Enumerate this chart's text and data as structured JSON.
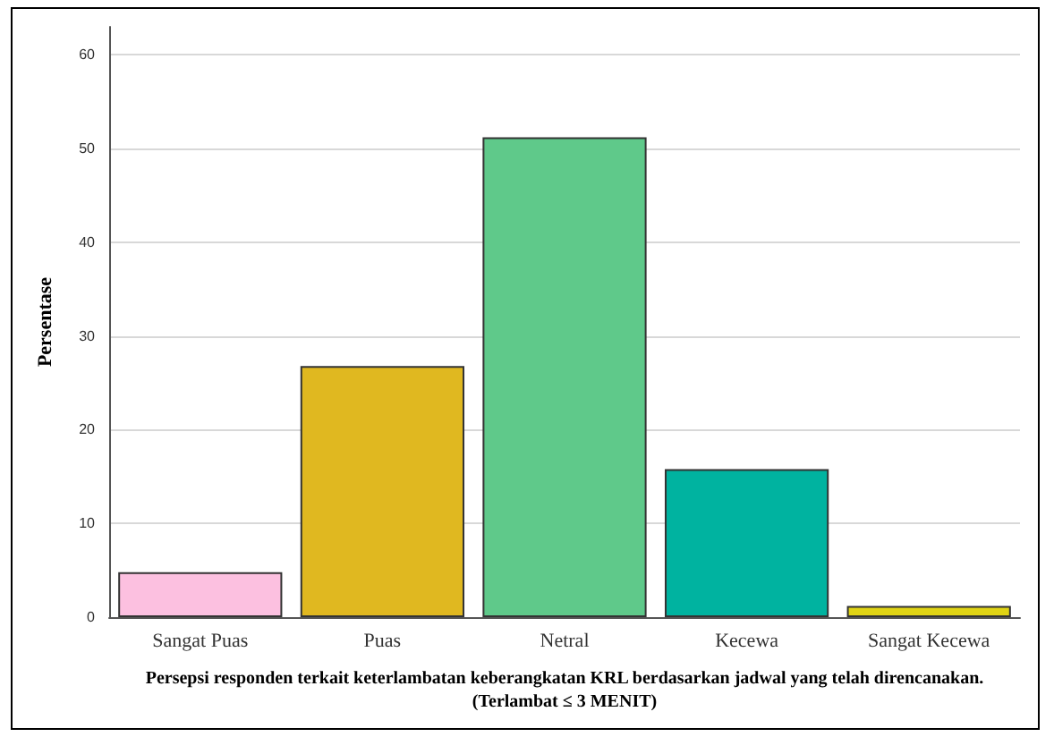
{
  "chart_data": {
    "type": "bar",
    "xlabel": "Persepsi responden terkait keterlambatan keberangkatan KRL berdasarkan jadwal yang telah direncanakan.\n(Terlambat ≤ 3 MENIT)",
    "ylabel": "Persentase",
    "categories": [
      "Sangat Puas",
      "Puas",
      "Netral",
      "Kecewa",
      "Sangat Kecewa"
    ],
    "values": [
      4.8,
      26.8,
      51.2,
      15.8,
      1.2
    ],
    "colors": [
      "#fcc0e0",
      "#e0b820",
      "#5fc98a",
      "#00b3a0",
      "#e0d414"
    ],
    "ylim": [
      0,
      63
    ],
    "yticks": [
      0,
      10,
      20,
      30,
      40,
      50,
      60
    ],
    "grid": "y"
  }
}
